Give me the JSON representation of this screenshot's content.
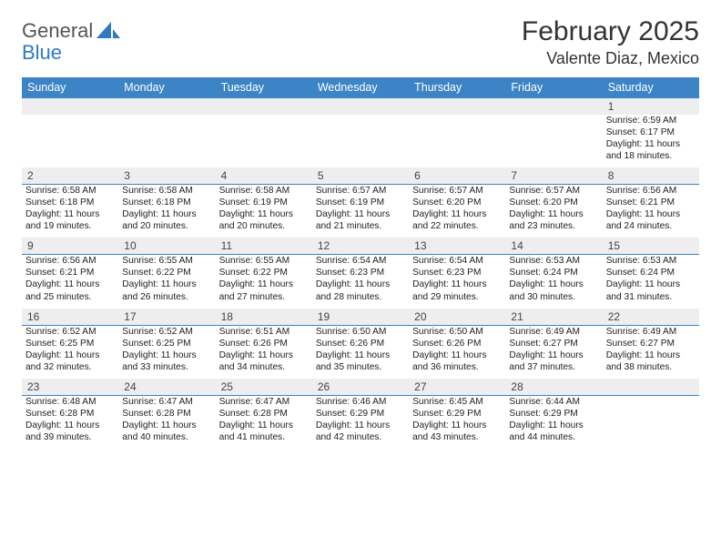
{
  "brand": {
    "name1": "General",
    "name2": "Blue",
    "icon_color": "#2f79c2",
    "text_color": "#555555"
  },
  "header": {
    "month_title": "February 2025",
    "location": "Valente Diaz, Mexico",
    "title_fontsize": 30,
    "location_fontsize": 18
  },
  "calendar": {
    "header_bg": "#3c84c6",
    "header_fg": "#ffffff",
    "grid_line_color": "#3c84c6",
    "daynum_bg": "#eeeeee",
    "background": "#ffffff",
    "columns": [
      "Sunday",
      "Monday",
      "Tuesday",
      "Wednesday",
      "Thursday",
      "Friday",
      "Saturday"
    ],
    "body_fontsize": 10.2,
    "header_fontsize": 12.5,
    "weeks": [
      [
        null,
        null,
        null,
        null,
        null,
        null,
        {
          "d": "1",
          "sr": "6:59 AM",
          "ss": "6:17 PM",
          "dl": "11 hours and 18 minutes."
        }
      ],
      [
        {
          "d": "2",
          "sr": "6:58 AM",
          "ss": "6:18 PM",
          "dl": "11 hours and 19 minutes."
        },
        {
          "d": "3",
          "sr": "6:58 AM",
          "ss": "6:18 PM",
          "dl": "11 hours and 20 minutes."
        },
        {
          "d": "4",
          "sr": "6:58 AM",
          "ss": "6:19 PM",
          "dl": "11 hours and 20 minutes."
        },
        {
          "d": "5",
          "sr": "6:57 AM",
          "ss": "6:19 PM",
          "dl": "11 hours and 21 minutes."
        },
        {
          "d": "6",
          "sr": "6:57 AM",
          "ss": "6:20 PM",
          "dl": "11 hours and 22 minutes."
        },
        {
          "d": "7",
          "sr": "6:57 AM",
          "ss": "6:20 PM",
          "dl": "11 hours and 23 minutes."
        },
        {
          "d": "8",
          "sr": "6:56 AM",
          "ss": "6:21 PM",
          "dl": "11 hours and 24 minutes."
        }
      ],
      [
        {
          "d": "9",
          "sr": "6:56 AM",
          "ss": "6:21 PM",
          "dl": "11 hours and 25 minutes."
        },
        {
          "d": "10",
          "sr": "6:55 AM",
          "ss": "6:22 PM",
          "dl": "11 hours and 26 minutes."
        },
        {
          "d": "11",
          "sr": "6:55 AM",
          "ss": "6:22 PM",
          "dl": "11 hours and 27 minutes."
        },
        {
          "d": "12",
          "sr": "6:54 AM",
          "ss": "6:23 PM",
          "dl": "11 hours and 28 minutes."
        },
        {
          "d": "13",
          "sr": "6:54 AM",
          "ss": "6:23 PM",
          "dl": "11 hours and 29 minutes."
        },
        {
          "d": "14",
          "sr": "6:53 AM",
          "ss": "6:24 PM",
          "dl": "11 hours and 30 minutes."
        },
        {
          "d": "15",
          "sr": "6:53 AM",
          "ss": "6:24 PM",
          "dl": "11 hours and 31 minutes."
        }
      ],
      [
        {
          "d": "16",
          "sr": "6:52 AM",
          "ss": "6:25 PM",
          "dl": "11 hours and 32 minutes."
        },
        {
          "d": "17",
          "sr": "6:52 AM",
          "ss": "6:25 PM",
          "dl": "11 hours and 33 minutes."
        },
        {
          "d": "18",
          "sr": "6:51 AM",
          "ss": "6:26 PM",
          "dl": "11 hours and 34 minutes."
        },
        {
          "d": "19",
          "sr": "6:50 AM",
          "ss": "6:26 PM",
          "dl": "11 hours and 35 minutes."
        },
        {
          "d": "20",
          "sr": "6:50 AM",
          "ss": "6:26 PM",
          "dl": "11 hours and 36 minutes."
        },
        {
          "d": "21",
          "sr": "6:49 AM",
          "ss": "6:27 PM",
          "dl": "11 hours and 37 minutes."
        },
        {
          "d": "22",
          "sr": "6:49 AM",
          "ss": "6:27 PM",
          "dl": "11 hours and 38 minutes."
        }
      ],
      [
        {
          "d": "23",
          "sr": "6:48 AM",
          "ss": "6:28 PM",
          "dl": "11 hours and 39 minutes."
        },
        {
          "d": "24",
          "sr": "6:47 AM",
          "ss": "6:28 PM",
          "dl": "11 hours and 40 minutes."
        },
        {
          "d": "25",
          "sr": "6:47 AM",
          "ss": "6:28 PM",
          "dl": "11 hours and 41 minutes."
        },
        {
          "d": "26",
          "sr": "6:46 AM",
          "ss": "6:29 PM",
          "dl": "11 hours and 42 minutes."
        },
        {
          "d": "27",
          "sr": "6:45 AM",
          "ss": "6:29 PM",
          "dl": "11 hours and 43 minutes."
        },
        {
          "d": "28",
          "sr": "6:44 AM",
          "ss": "6:29 PM",
          "dl": "11 hours and 44 minutes."
        },
        null
      ]
    ]
  },
  "labels": {
    "sunrise": "Sunrise:",
    "sunset": "Sunset:",
    "daylight": "Daylight:"
  }
}
